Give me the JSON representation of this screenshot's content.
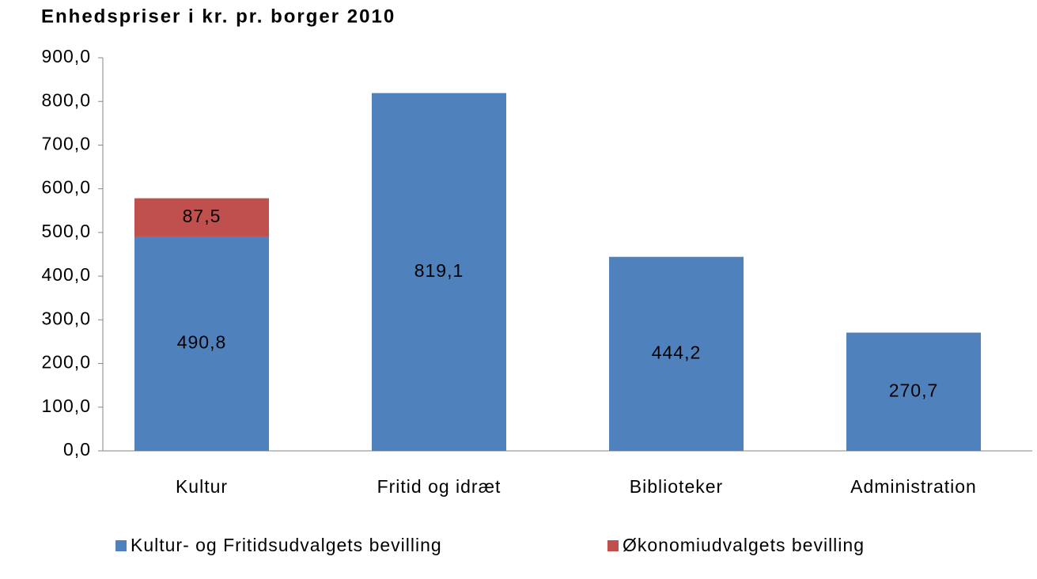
{
  "chart_data": {
    "type": "stacked_bar",
    "title": "Enhedspriser i kr. pr. borger 2010",
    "categories": [
      "Kultur",
      "Fritid og idræt",
      "Biblioteker",
      "Administration"
    ],
    "series": [
      {
        "name": "Kultur- og Fritidsudvalgets bevilling",
        "color": "#4f81bd",
        "values": [
          490.8,
          819.1,
          444.2,
          270.7
        ],
        "value_labels": [
          "490,8",
          "819,1",
          "444,2",
          "270,7"
        ]
      },
      {
        "name": "Økonomiudvalgets bevilling",
        "color": "#c0504d",
        "values": [
          87.5,
          null,
          null,
          null
        ],
        "value_labels": [
          "87,5",
          null,
          null,
          null
        ]
      }
    ],
    "ylim": [
      0,
      900
    ],
    "yticks": [
      {
        "value": 0,
        "label": "0,0"
      },
      {
        "value": 100,
        "label": "100,0"
      },
      {
        "value": 200,
        "label": "200,0"
      },
      {
        "value": 300,
        "label": "300,0"
      },
      {
        "value": 400,
        "label": "400,0"
      },
      {
        "value": 500,
        "label": "500,0"
      },
      {
        "value": 600,
        "label": "600,0"
      },
      {
        "value": 700,
        "label": "700,0"
      },
      {
        "value": 800,
        "label": "800,0"
      },
      {
        "value": 900,
        "label": "900,0"
      }
    ],
    "grid": false,
    "legend": "bottom"
  }
}
